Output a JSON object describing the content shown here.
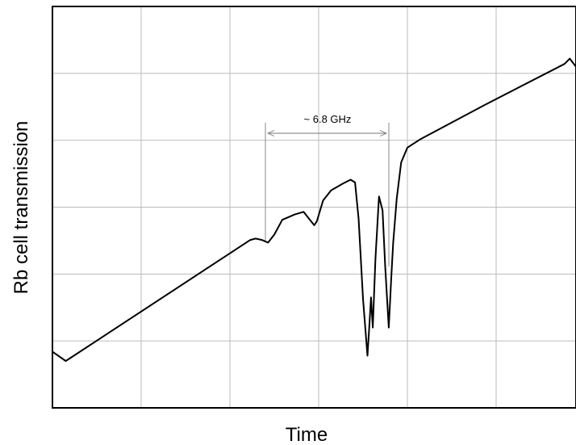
{
  "chart_data": {
    "type": "line",
    "x_label": "Time",
    "y_label": "Rb cell transmission",
    "annotation": "~ 6.8 GHz",
    "xlim": [
      0,
      5.9
    ],
    "ylim": [
      0,
      6
    ],
    "xgrid": [
      1,
      2,
      3,
      4,
      5
    ],
    "ygrid": [
      1,
      2,
      3,
      4,
      5
    ],
    "grid": true,
    "color": "#000000",
    "x": [
      0,
      0.15,
      2.23,
      2.29,
      2.36,
      2.43,
      2.5,
      2.59,
      2.73,
      2.83,
      2.89,
      2.95,
      2.98,
      3.05,
      3.14,
      3.27,
      3.36,
      3.41,
      3.45,
      3.5,
      3.55,
      3.57,
      3.59,
      3.61,
      3.64,
      3.68,
      3.72,
      3.75,
      3.79,
      3.82,
      3.84,
      3.88,
      3.93,
      4.0,
      4.14,
      4.86,
      5.77,
      5.83,
      5.9
    ],
    "values": [
      0.84,
      0.7,
      2.51,
      2.53,
      2.51,
      2.47,
      2.59,
      2.81,
      2.89,
      2.93,
      2.83,
      2.73,
      2.79,
      3.1,
      3.25,
      3.35,
      3.41,
      3.37,
      2.83,
      1.63,
      0.78,
      1.2,
      1.65,
      1.2,
      2.23,
      3.16,
      2.95,
      2.11,
      1.2,
      1.99,
      2.47,
      3.13,
      3.67,
      3.89,
      4.01,
      4.52,
      5.14,
      5.22,
      5.1
    ]
  }
}
